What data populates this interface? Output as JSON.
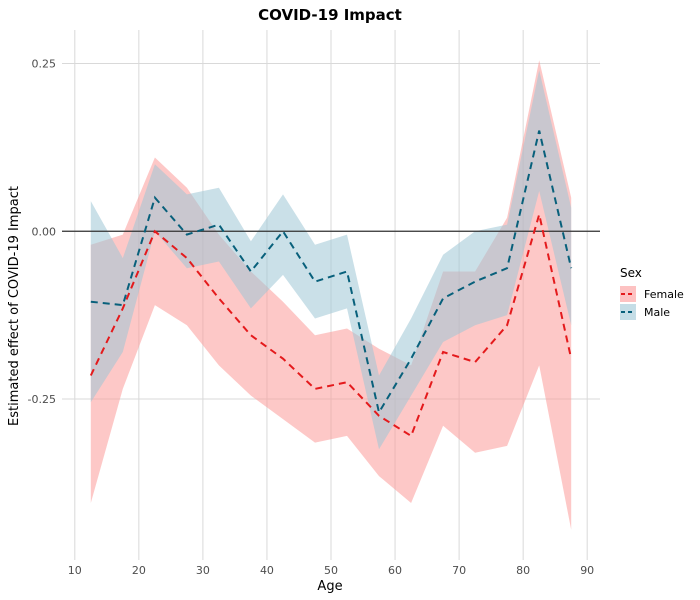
{
  "chart_data": {
    "type": "line",
    "title": "COVID-19 Impact",
    "xlabel": "Age",
    "ylabel": "Estimated effect of COVID-19 Impact",
    "xlim": [
      8,
      92
    ],
    "ylim": [
      -0.49,
      0.3
    ],
    "x_ticks": [
      10,
      20,
      30,
      40,
      50,
      60,
      70,
      80,
      90
    ],
    "x_tick_labels": [
      "10",
      "20",
      "30",
      "40",
      "50",
      "60",
      "70",
      "80",
      "90"
    ],
    "y_ticks": [
      -0.25,
      0,
      0.25
    ],
    "y_tick_labels": [
      "-0.25",
      "0.00",
      "0.25"
    ],
    "reference_line_y": 0,
    "grid": true,
    "legend": {
      "title": "Sex",
      "position": "right"
    },
    "x": [
      12.5,
      17.5,
      22.5,
      27.5,
      32.5,
      37.5,
      42.5,
      47.5,
      52.5,
      57.5,
      62.5,
      67.5,
      72.5,
      77.5,
      82.5,
      87.5
    ],
    "series": [
      {
        "name": "Female",
        "color": "#e41a1c",
        "fill": "#fb9a99",
        "values": [
          -0.215,
          -0.115,
          0.0,
          -0.04,
          -0.1,
          -0.155,
          -0.19,
          -0.235,
          -0.225,
          -0.275,
          -0.305,
          -0.18,
          -0.195,
          -0.14,
          0.025,
          -0.19
        ],
        "lower": [
          -0.405,
          -0.235,
          -0.11,
          -0.14,
          -0.2,
          -0.245,
          -0.28,
          -0.315,
          -0.305,
          -0.365,
          -0.405,
          -0.29,
          -0.33,
          -0.32,
          -0.2,
          -0.445
        ],
        "upper": [
          -0.02,
          -0.005,
          0.11,
          0.065,
          -0.005,
          -0.06,
          -0.105,
          -0.155,
          -0.145,
          -0.175,
          -0.2,
          -0.06,
          -0.06,
          0.02,
          0.255,
          0.05
        ]
      },
      {
        "name": "Male",
        "color": "#08607b",
        "fill": "#9ec7d6",
        "values": [
          -0.105,
          -0.11,
          0.05,
          -0.005,
          0.01,
          -0.06,
          0.0,
          -0.075,
          -0.06,
          -0.27,
          -0.19,
          -0.1,
          -0.075,
          -0.055,
          0.15,
          -0.055
        ],
        "lower": [
          -0.255,
          -0.18,
          0.0,
          -0.055,
          -0.045,
          -0.115,
          -0.065,
          -0.13,
          -0.115,
          -0.325,
          -0.245,
          -0.165,
          -0.14,
          -0.125,
          0.06,
          -0.14
        ],
        "upper": [
          0.045,
          -0.04,
          0.1,
          0.055,
          0.065,
          -0.015,
          0.055,
          -0.02,
          -0.005,
          -0.215,
          -0.13,
          -0.035,
          0.0,
          0.01,
          0.24,
          0.035
        ]
      }
    ]
  }
}
